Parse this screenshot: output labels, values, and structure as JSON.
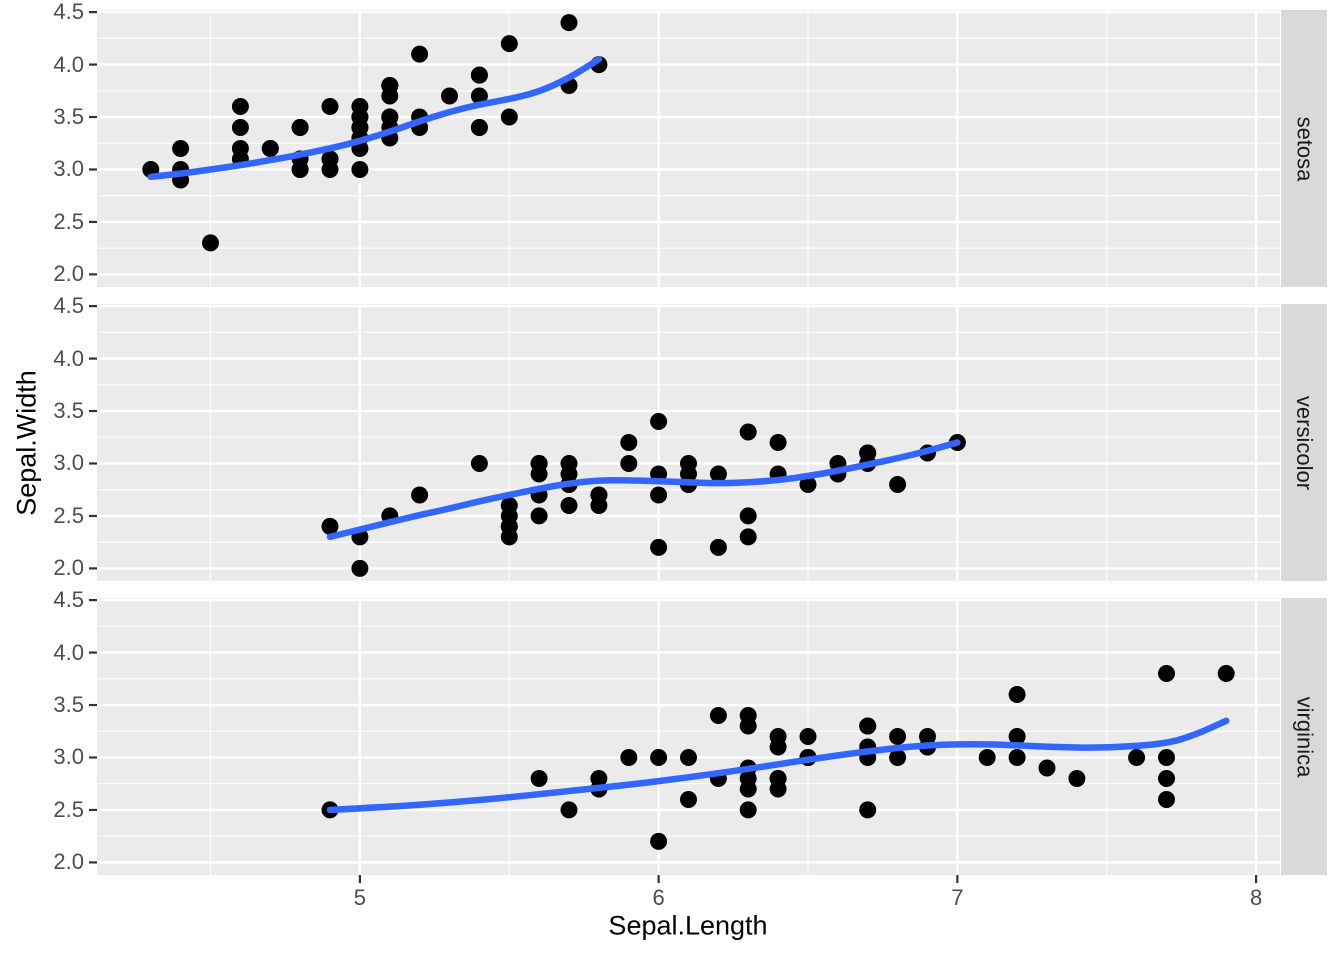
{
  "chart_data": {
    "type": "scatter",
    "title": "",
    "xlabel": "Sepal.Length",
    "ylabel": "Sepal.Width",
    "x_range": [
      4.12,
      8.08
    ],
    "y_range": [
      1.88,
      4.52
    ],
    "x_ticks": [
      5,
      6,
      7,
      8
    ],
    "x_tick_labels": [
      "5",
      "6",
      "7",
      "8"
    ],
    "x_minor": [
      4.5,
      5.5,
      6.5,
      7.5
    ],
    "y_ticks": [
      4.5,
      4.0,
      3.5,
      3.0,
      2.5,
      2.0
    ],
    "y_tick_labels": [
      "4.5",
      "4.0",
      "3.5",
      "3.0",
      "2.5",
      "2.0"
    ],
    "y_minor": [
      4.25,
      3.75,
      3.25,
      2.75,
      2.25
    ],
    "grid": true,
    "legend": "none",
    "facet_variable": "Species",
    "facets": [
      {
        "label": "setosa",
        "points": [
          [
            5.1,
            3.5
          ],
          [
            4.9,
            3.0
          ],
          [
            4.7,
            3.2
          ],
          [
            4.6,
            3.1
          ],
          [
            5.0,
            3.6
          ],
          [
            5.4,
            3.9
          ],
          [
            4.6,
            3.4
          ],
          [
            5.0,
            3.4
          ],
          [
            4.4,
            2.9
          ],
          [
            4.9,
            3.1
          ],
          [
            5.4,
            3.7
          ],
          [
            4.8,
            3.4
          ],
          [
            4.8,
            3.0
          ],
          [
            4.3,
            3.0
          ],
          [
            5.8,
            4.0
          ],
          [
            5.7,
            4.4
          ],
          [
            5.4,
            3.9
          ],
          [
            5.1,
            3.5
          ],
          [
            5.7,
            3.8
          ],
          [
            5.1,
            3.8
          ],
          [
            5.4,
            3.4
          ],
          [
            5.1,
            3.7
          ],
          [
            4.6,
            3.6
          ],
          [
            5.1,
            3.3
          ],
          [
            4.8,
            3.4
          ],
          [
            5.0,
            3.0
          ],
          [
            5.0,
            3.4
          ],
          [
            5.2,
            3.5
          ],
          [
            5.2,
            3.4
          ],
          [
            4.7,
            3.2
          ],
          [
            4.8,
            3.1
          ],
          [
            5.4,
            3.4
          ],
          [
            5.2,
            4.1
          ],
          [
            5.5,
            4.2
          ],
          [
            4.9,
            3.1
          ],
          [
            5.0,
            3.2
          ],
          [
            5.5,
            3.5
          ],
          [
            4.9,
            3.6
          ],
          [
            4.4,
            3.0
          ],
          [
            5.1,
            3.4
          ],
          [
            5.0,
            3.5
          ],
          [
            4.5,
            2.3
          ],
          [
            4.4,
            3.2
          ],
          [
            5.0,
            3.5
          ],
          [
            5.1,
            3.8
          ],
          [
            4.8,
            3.0
          ],
          [
            5.1,
            3.8
          ],
          [
            4.6,
            3.2
          ],
          [
            5.3,
            3.7
          ],
          [
            5.0,
            3.3
          ]
        ],
        "smooth": [
          [
            4.3,
            2.93
          ],
          [
            4.4,
            2.96
          ],
          [
            4.5,
            3.0
          ],
          [
            4.6,
            3.04
          ],
          [
            4.7,
            3.09
          ],
          [
            4.8,
            3.14
          ],
          [
            4.9,
            3.2
          ],
          [
            5.0,
            3.27
          ],
          [
            5.1,
            3.36
          ],
          [
            5.2,
            3.46
          ],
          [
            5.3,
            3.55
          ],
          [
            5.4,
            3.62
          ],
          [
            5.5,
            3.67
          ],
          [
            5.6,
            3.74
          ],
          [
            5.7,
            3.87
          ],
          [
            5.8,
            4.05
          ]
        ]
      },
      {
        "label": "versicolor",
        "points": [
          [
            7.0,
            3.2
          ],
          [
            6.4,
            3.2
          ],
          [
            6.9,
            3.1
          ],
          [
            5.5,
            2.3
          ],
          [
            6.5,
            2.8
          ],
          [
            5.7,
            2.8
          ],
          [
            6.3,
            3.3
          ],
          [
            4.9,
            2.4
          ],
          [
            6.6,
            2.9
          ],
          [
            5.2,
            2.7
          ],
          [
            5.0,
            2.0
          ],
          [
            5.9,
            3.0
          ],
          [
            6.0,
            2.2
          ],
          [
            6.1,
            2.9
          ],
          [
            5.6,
            2.9
          ],
          [
            6.7,
            3.1
          ],
          [
            5.6,
            3.0
          ],
          [
            5.8,
            2.7
          ],
          [
            6.2,
            2.2
          ],
          [
            5.6,
            2.5
          ],
          [
            5.9,
            3.2
          ],
          [
            6.1,
            2.8
          ],
          [
            6.3,
            2.5
          ],
          [
            6.1,
            2.8
          ],
          [
            6.4,
            2.9
          ],
          [
            6.6,
            3.0
          ],
          [
            6.8,
            2.8
          ],
          [
            6.7,
            3.0
          ],
          [
            6.0,
            2.9
          ],
          [
            5.7,
            2.6
          ],
          [
            5.5,
            2.4
          ],
          [
            5.5,
            2.4
          ],
          [
            5.8,
            2.7
          ],
          [
            6.0,
            2.7
          ],
          [
            5.4,
            3.0
          ],
          [
            6.0,
            3.4
          ],
          [
            6.7,
            3.1
          ],
          [
            6.3,
            2.3
          ],
          [
            5.6,
            3.0
          ],
          [
            5.5,
            2.5
          ],
          [
            5.5,
            2.6
          ],
          [
            6.1,
            3.0
          ],
          [
            5.8,
            2.6
          ],
          [
            5.0,
            2.3
          ],
          [
            5.6,
            2.7
          ],
          [
            5.7,
            3.0
          ],
          [
            5.7,
            2.9
          ],
          [
            6.2,
            2.9
          ],
          [
            5.1,
            2.5
          ],
          [
            5.7,
            2.8
          ]
        ],
        "smooth": [
          [
            4.9,
            2.3
          ],
          [
            5.0,
            2.37
          ],
          [
            5.1,
            2.44
          ],
          [
            5.2,
            2.51
          ],
          [
            5.3,
            2.57
          ],
          [
            5.4,
            2.64
          ],
          [
            5.5,
            2.7
          ],
          [
            5.6,
            2.76
          ],
          [
            5.7,
            2.81
          ],
          [
            5.8,
            2.84
          ],
          [
            5.9,
            2.84
          ],
          [
            6.0,
            2.83
          ],
          [
            6.1,
            2.82
          ],
          [
            6.2,
            2.81
          ],
          [
            6.3,
            2.82
          ],
          [
            6.4,
            2.84
          ],
          [
            6.5,
            2.88
          ],
          [
            6.6,
            2.93
          ],
          [
            6.7,
            2.99
          ],
          [
            6.8,
            3.05
          ],
          [
            6.9,
            3.12
          ],
          [
            7.0,
            3.2
          ]
        ]
      },
      {
        "label": "virginica",
        "points": [
          [
            6.3,
            3.3
          ],
          [
            5.8,
            2.7
          ],
          [
            7.1,
            3.0
          ],
          [
            6.3,
            2.9
          ],
          [
            6.5,
            3.0
          ],
          [
            7.6,
            3.0
          ],
          [
            4.9,
            2.5
          ],
          [
            7.3,
            2.9
          ],
          [
            6.7,
            2.5
          ],
          [
            7.2,
            3.6
          ],
          [
            6.5,
            3.2
          ],
          [
            6.4,
            2.7
          ],
          [
            6.8,
            3.0
          ],
          [
            5.7,
            2.5
          ],
          [
            5.8,
            2.8
          ],
          [
            6.4,
            3.2
          ],
          [
            6.5,
            3.0
          ],
          [
            7.7,
            3.8
          ],
          [
            7.7,
            2.6
          ],
          [
            6.0,
            2.2
          ],
          [
            6.9,
            3.2
          ],
          [
            5.6,
            2.8
          ],
          [
            7.7,
            2.8
          ],
          [
            6.3,
            2.7
          ],
          [
            6.7,
            3.3
          ],
          [
            7.2,
            3.2
          ],
          [
            6.2,
            2.8
          ],
          [
            6.1,
            3.0
          ],
          [
            6.4,
            2.8
          ],
          [
            7.2,
            3.0
          ],
          [
            7.4,
            2.8
          ],
          [
            7.9,
            3.8
          ],
          [
            6.4,
            2.8
          ],
          [
            6.3,
            2.8
          ],
          [
            6.1,
            2.6
          ],
          [
            7.7,
            3.0
          ],
          [
            6.3,
            3.4
          ],
          [
            6.4,
            3.1
          ],
          [
            6.0,
            3.0
          ],
          [
            6.9,
            3.1
          ],
          [
            6.7,
            3.1
          ],
          [
            6.9,
            3.1
          ],
          [
            5.8,
            2.7
          ],
          [
            6.8,
            3.2
          ],
          [
            6.7,
            3.3
          ],
          [
            6.7,
            3.0
          ],
          [
            6.3,
            2.5
          ],
          [
            6.5,
            3.0
          ],
          [
            6.2,
            3.4
          ],
          [
            5.9,
            3.0
          ]
        ],
        "smooth": [
          [
            4.9,
            2.5
          ],
          [
            5.1,
            2.53
          ],
          [
            5.3,
            2.57
          ],
          [
            5.5,
            2.62
          ],
          [
            5.7,
            2.68
          ],
          [
            5.9,
            2.74
          ],
          [
            6.1,
            2.81
          ],
          [
            6.3,
            2.89
          ],
          [
            6.5,
            2.98
          ],
          [
            6.7,
            3.06
          ],
          [
            6.9,
            3.12
          ],
          [
            7.1,
            3.13
          ],
          [
            7.3,
            3.1
          ],
          [
            7.5,
            3.09
          ],
          [
            7.7,
            3.13
          ],
          [
            7.8,
            3.22
          ],
          [
            7.9,
            3.35
          ]
        ]
      }
    ],
    "colors": {
      "panel_background": "#EBEBEB",
      "strip_background": "#D9D9D9",
      "grid_major": "#FFFFFF",
      "grid_minor": "#FFFFFF",
      "point": "#000000",
      "smooth_line": "#3366FF",
      "tick_label": "#4D4D4D",
      "axis_title": "#000000",
      "strip_label": "#1A1A1A",
      "tick_mark": "#333333",
      "figure_background": "#FFFFFF"
    }
  }
}
